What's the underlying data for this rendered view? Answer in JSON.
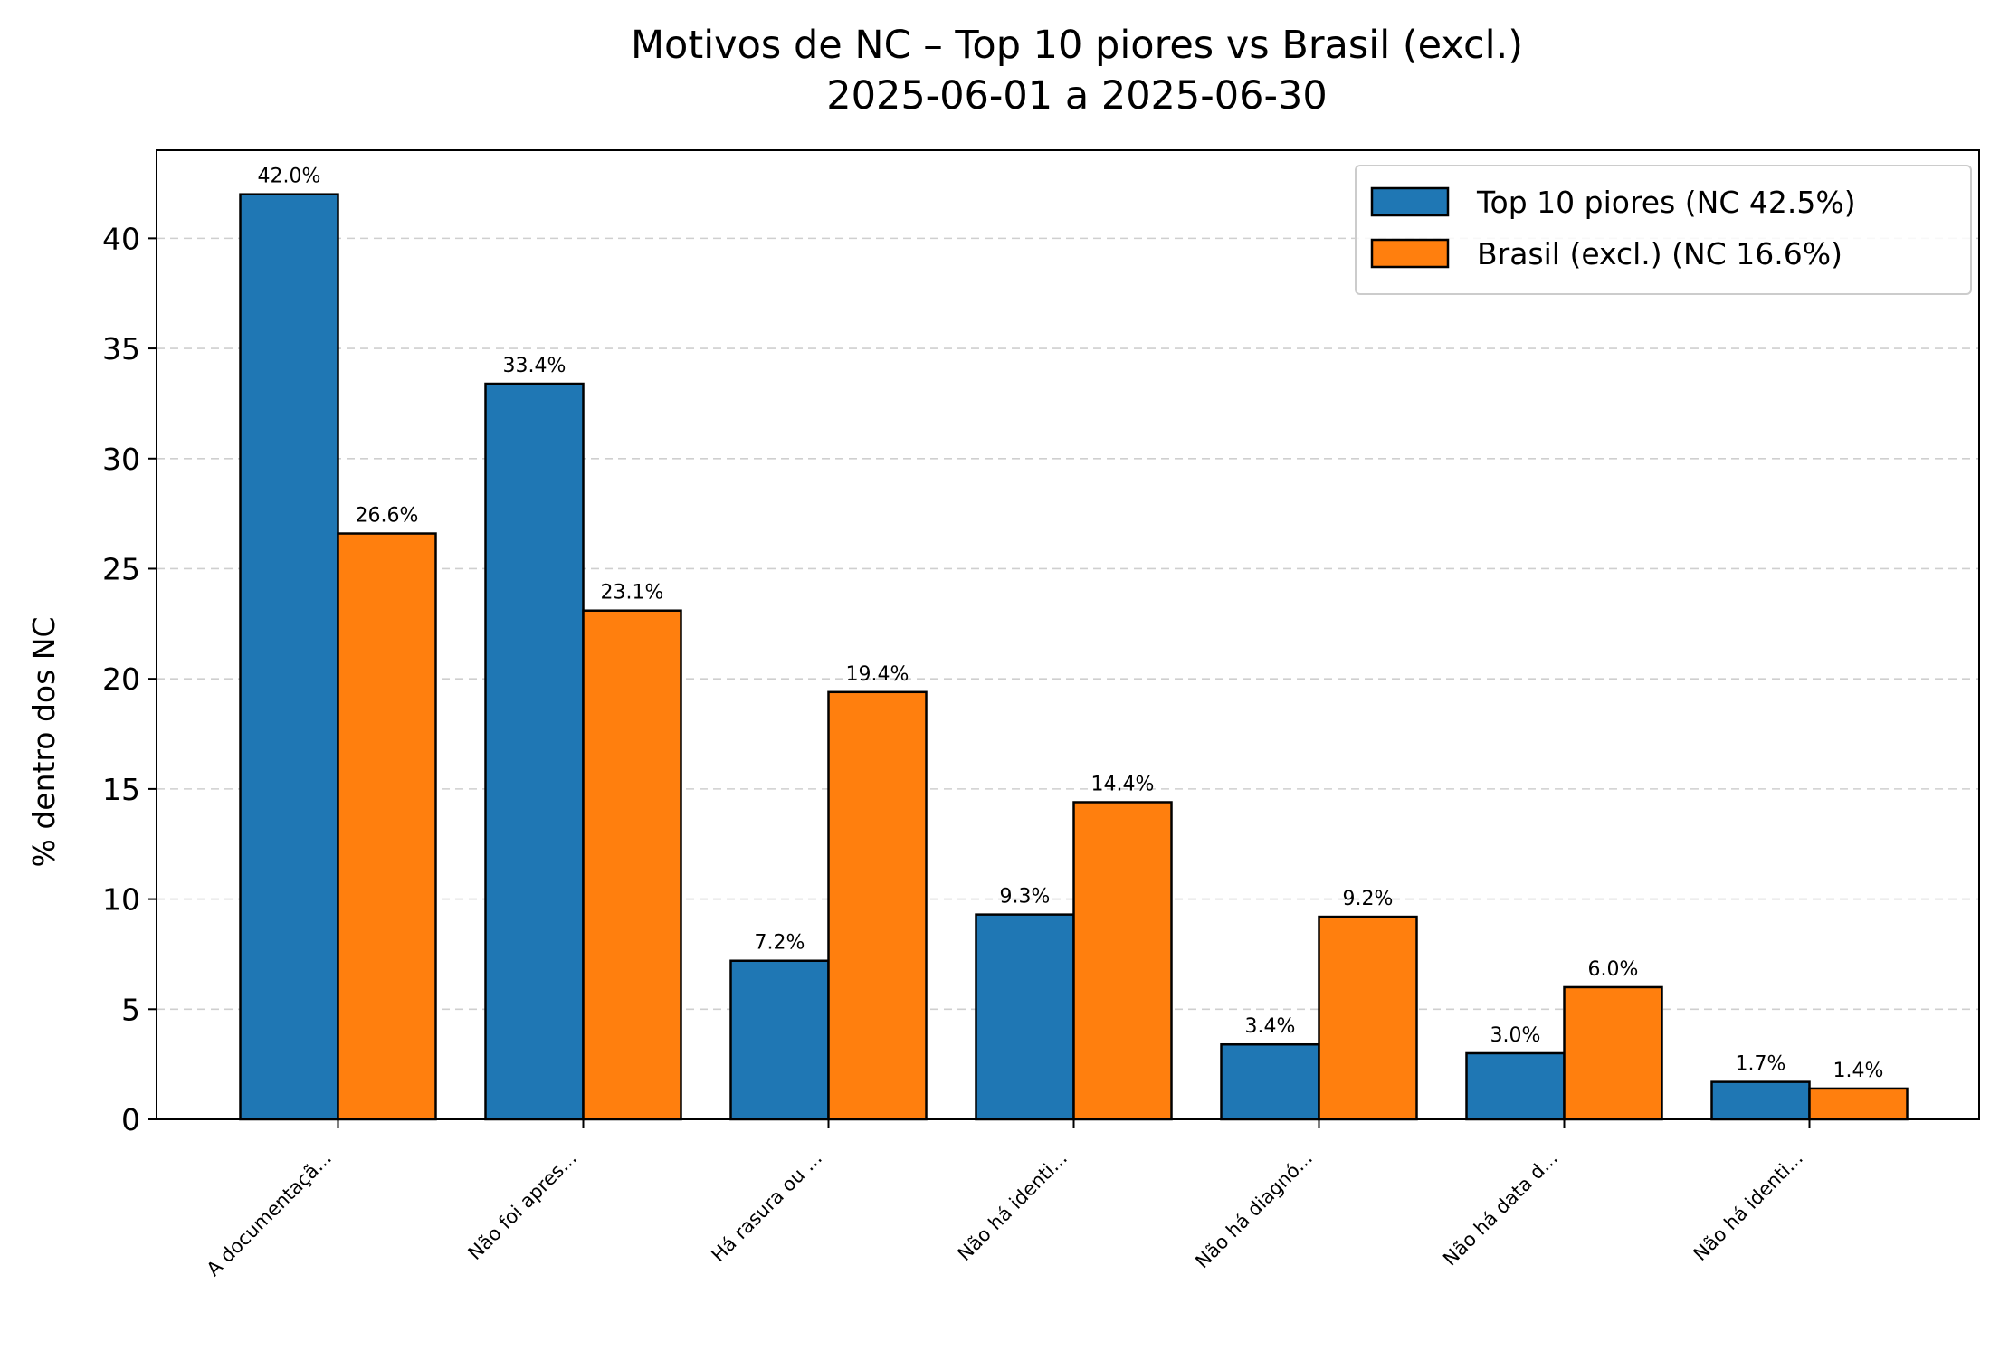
{
  "chart_data": {
    "type": "bar",
    "title": "Motivos de NC – Top 10 piores vs Brasil (excl.)",
    "subtitle": "2025-06-01 a 2025-06-30",
    "xlabel": "",
    "ylabel": "% dentro dos NC",
    "ylim": [
      0,
      44
    ],
    "yticks": [
      "0",
      "5",
      "10",
      "15",
      "20",
      "25",
      "30",
      "35",
      "40"
    ],
    "grid": true,
    "legend_position": "top-right",
    "categories": [
      "A documentaçã...",
      "Não foi apres...",
      "Há rasura ou ...",
      "Não há identi...",
      "Não há diagnó...",
      "Não há data d...",
      "Não há identi..."
    ],
    "series": [
      {
        "name": "Top 10 piores (NC 42.5%)",
        "color": "#1f77b4",
        "values": [
          42.0,
          33.4,
          7.2,
          9.3,
          3.4,
          3.0,
          1.7
        ],
        "labels": [
          "42.0%",
          "33.4%",
          "7.2%",
          "9.3%",
          "3.4%",
          "3.0%",
          "1.7%"
        ]
      },
      {
        "name": "Brasil (excl.) (NC 16.6%)",
        "color": "#ff7f0e",
        "values": [
          26.6,
          23.1,
          19.4,
          14.4,
          9.2,
          6.0,
          1.4
        ],
        "labels": [
          "26.6%",
          "23.1%",
          "19.4%",
          "14.4%",
          "9.2%",
          "6.0%",
          "1.4%"
        ]
      }
    ]
  }
}
